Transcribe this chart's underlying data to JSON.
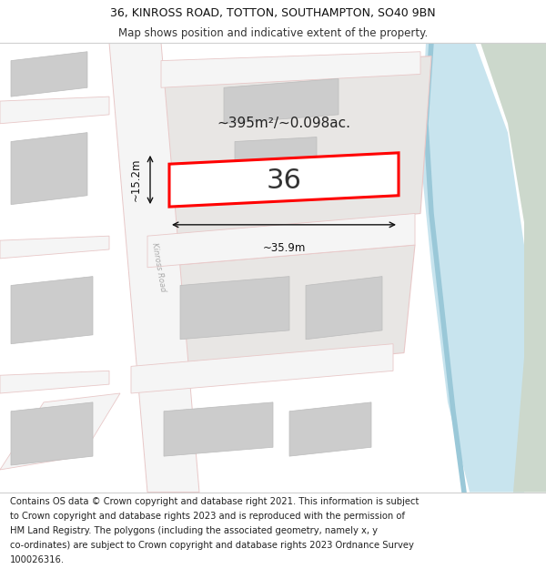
{
  "title_line1": "36, KINROSS ROAD, TOTTON, SOUTHAMPTON, SO40 9BN",
  "title_line2": "Map shows position and indicative extent of the property.",
  "footer_lines": [
    "Contains OS data © Crown copyright and database right 2021. This information is subject",
    "to Crown copyright and database rights 2023 and is reproduced with the permission of",
    "HM Land Registry. The polygons (including the associated geometry, namely x, y",
    "co-ordinates) are subject to Crown copyright and database rights 2023 Ordnance Survey",
    "100026316."
  ],
  "area_label": "~395m²/~0.098ac.",
  "number_label": "36",
  "width_label": "~35.9m",
  "height_label": "~15.2m",
  "bg_color": "#ffffff",
  "map_bg": "#f2f2f0",
  "road_fill": "#f5f5f5",
  "road_stroke": "#e8c8c8",
  "building_fill": "#cccccc",
  "building_stroke": "#bbbbbb",
  "block_fill": "#e0e0e0",
  "highlight_fill": "#ffffff",
  "highlight_stroke": "#ff0000",
  "water_fill": "#c8e4ee",
  "land_fill": "#ccd8cc",
  "river_line": "#9ac8d8",
  "dim_color": "#111111",
  "road_label_color": "#aaaaaa",
  "title_fontsize": 9.0,
  "subtitle_fontsize": 8.5,
  "footer_fontsize": 7.2,
  "label_fontsize": 8.5,
  "number_fontsize": 22.0,
  "area_fontsize": 11.0
}
